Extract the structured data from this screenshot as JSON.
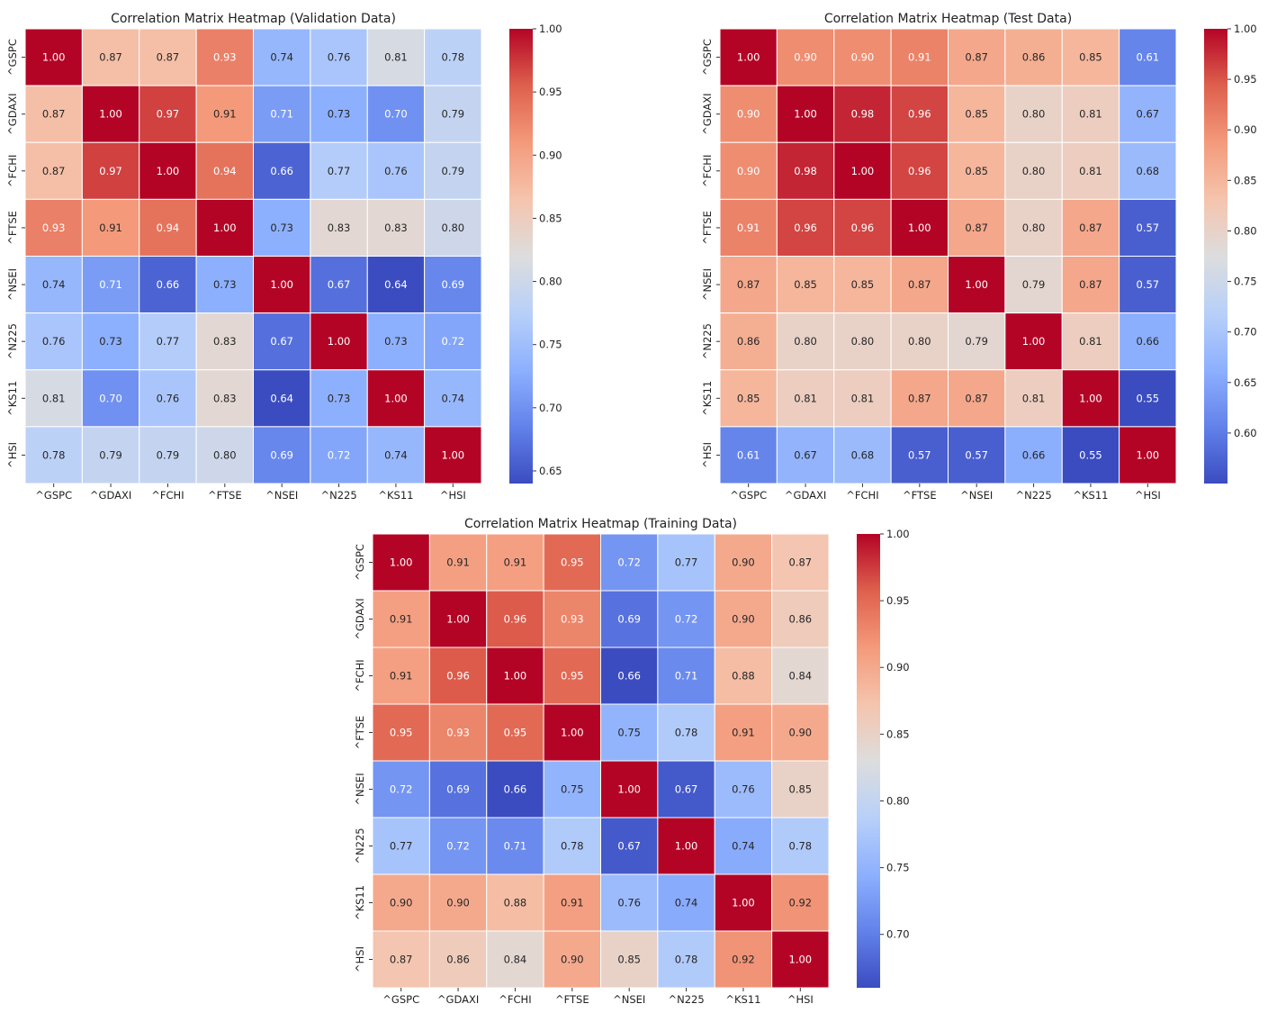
{
  "chart_data": [
    {
      "type": "heatmap",
      "title": "Correlation Matrix Heatmap (Validation Data)",
      "labels": [
        "^GSPC",
        "^GDAXI",
        "^FCHI",
        "^FTSE",
        "^NSEI",
        "^N225",
        "^KS11",
        "^HSI"
      ],
      "values": [
        [
          1.0,
          0.87,
          0.87,
          0.93,
          0.74,
          0.76,
          0.81,
          0.78
        ],
        [
          0.87,
          1.0,
          0.97,
          0.91,
          0.71,
          0.73,
          0.7,
          0.79
        ],
        [
          0.87,
          0.97,
          1.0,
          0.94,
          0.66,
          0.77,
          0.76,
          0.79
        ],
        [
          0.93,
          0.91,
          0.94,
          1.0,
          0.73,
          0.83,
          0.83,
          0.8
        ],
        [
          0.74,
          0.71,
          0.66,
          0.73,
          1.0,
          0.67,
          0.64,
          0.69
        ],
        [
          0.76,
          0.73,
          0.77,
          0.83,
          0.67,
          1.0,
          0.73,
          0.72
        ],
        [
          0.81,
          0.7,
          0.76,
          0.83,
          0.64,
          0.73,
          1.0,
          0.74
        ],
        [
          0.78,
          0.79,
          0.79,
          0.8,
          0.69,
          0.72,
          0.74,
          1.0
        ]
      ],
      "colormap": "coolwarm",
      "vrange": [
        0.64,
        1.0
      ],
      "colorbar_ticks": [
        "0.65",
        "0.70",
        "0.75",
        "0.80",
        "0.85",
        "0.90",
        "0.95",
        "1.00"
      ]
    },
    {
      "type": "heatmap",
      "title": "Correlation Matrix Heatmap (Test Data)",
      "labels": [
        "^GSPC",
        "^GDAXI",
        "^FCHI",
        "^FTSE",
        "^NSEI",
        "^N225",
        "^KS11",
        "^HSI"
      ],
      "values": [
        [
          1.0,
          0.9,
          0.9,
          0.91,
          0.87,
          0.86,
          0.85,
          0.61
        ],
        [
          0.9,
          1.0,
          0.98,
          0.96,
          0.85,
          0.8,
          0.81,
          0.67
        ],
        [
          0.9,
          0.98,
          1.0,
          0.96,
          0.85,
          0.8,
          0.81,
          0.68
        ],
        [
          0.91,
          0.96,
          0.96,
          1.0,
          0.87,
          0.8,
          0.87,
          0.57
        ],
        [
          0.87,
          0.85,
          0.85,
          0.87,
          1.0,
          0.79,
          0.87,
          0.57
        ],
        [
          0.86,
          0.8,
          0.8,
          0.8,
          0.79,
          1.0,
          0.81,
          0.66
        ],
        [
          0.85,
          0.81,
          0.81,
          0.87,
          0.87,
          0.81,
          1.0,
          0.55
        ],
        [
          0.61,
          0.67,
          0.68,
          0.57,
          0.57,
          0.66,
          0.55,
          1.0
        ]
      ],
      "colormap": "coolwarm",
      "vrange": [
        0.55,
        1.0
      ],
      "colorbar_ticks": [
        "0.60",
        "0.65",
        "0.70",
        "0.75",
        "0.80",
        "0.85",
        "0.90",
        "0.95",
        "1.00"
      ]
    },
    {
      "type": "heatmap",
      "title": "Correlation Matrix Heatmap (Training Data)",
      "labels": [
        "^GSPC",
        "^GDAXI",
        "^FCHI",
        "^FTSE",
        "^NSEI",
        "^N225",
        "^KS11",
        "^HSI"
      ],
      "values": [
        [
          1.0,
          0.91,
          0.91,
          0.95,
          0.72,
          0.77,
          0.9,
          0.87
        ],
        [
          0.91,
          1.0,
          0.96,
          0.93,
          0.69,
          0.72,
          0.9,
          0.86
        ],
        [
          0.91,
          0.96,
          1.0,
          0.95,
          0.66,
          0.71,
          0.88,
          0.84
        ],
        [
          0.95,
          0.93,
          0.95,
          1.0,
          0.75,
          0.78,
          0.91,
          0.9
        ],
        [
          0.72,
          0.69,
          0.66,
          0.75,
          1.0,
          0.67,
          0.76,
          0.85
        ],
        [
          0.77,
          0.72,
          0.71,
          0.78,
          0.67,
          1.0,
          0.74,
          0.78
        ],
        [
          0.9,
          0.9,
          0.88,
          0.91,
          0.76,
          0.74,
          1.0,
          0.92
        ],
        [
          0.87,
          0.86,
          0.84,
          0.9,
          0.85,
          0.78,
          0.92,
          1.0
        ]
      ],
      "colormap": "coolwarm",
      "vrange": [
        0.66,
        1.0
      ],
      "colorbar_ticks": [
        "0.70",
        "0.75",
        "0.80",
        "0.85",
        "0.90",
        "0.95",
        "1.00"
      ]
    }
  ]
}
